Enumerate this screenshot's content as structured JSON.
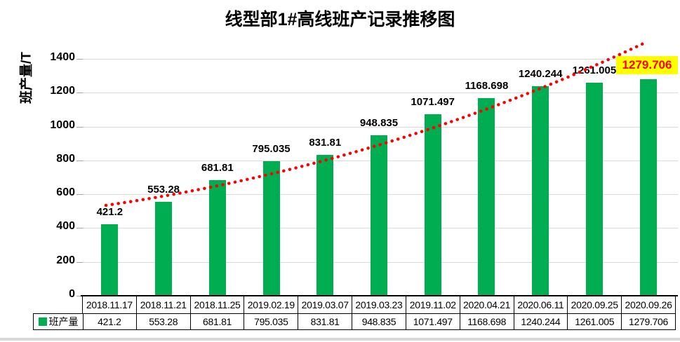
{
  "title": "线型部1#高线班产记录推移图",
  "y_axis_title": "班产量/T",
  "legend": {
    "label": "班产量"
  },
  "colors": {
    "bar": "#00AD50",
    "trend_line": "#FF0000",
    "gridline": "#D9D9D9",
    "highlight_bg": "#FFFF00",
    "highlight_text": "#FF0000"
  },
  "chart_data": {
    "type": "bar",
    "title": "线型部1#高线班产记录推移图",
    "xlabel": "",
    "ylabel": "班产量/T",
    "ylim": [
      0,
      1400
    ],
    "ytick_interval": 200,
    "grid": true,
    "legend_position": "table-left",
    "categories": [
      "2018.11.17",
      "2018.11.21",
      "2018.11.25",
      "2019.02.19",
      "2019.03.07",
      "2019.03.23",
      "2019.11.02",
      "2020.04.21",
      "2020.06.11",
      "2020.09.25",
      "2020.09.26"
    ],
    "series": [
      {
        "name": "班产量",
        "values": [
          421.2,
          553.28,
          681.81,
          795.035,
          831.81,
          948.835,
          1071.497,
          1168.698,
          1240.244,
          1261.005,
          1279.706
        ]
      }
    ],
    "value_labels": [
      "421.2",
      "553.28",
      "681.81",
      "795.035",
      "831.81",
      "948.835",
      "1071.497",
      "1168.698",
      "1240.244",
      "1261.005",
      "1279.706"
    ],
    "highlighted_value": "1279.706",
    "trendline": {
      "style": "dotted",
      "color": "#FF0000",
      "description": "rising dotted red trend curve"
    }
  }
}
